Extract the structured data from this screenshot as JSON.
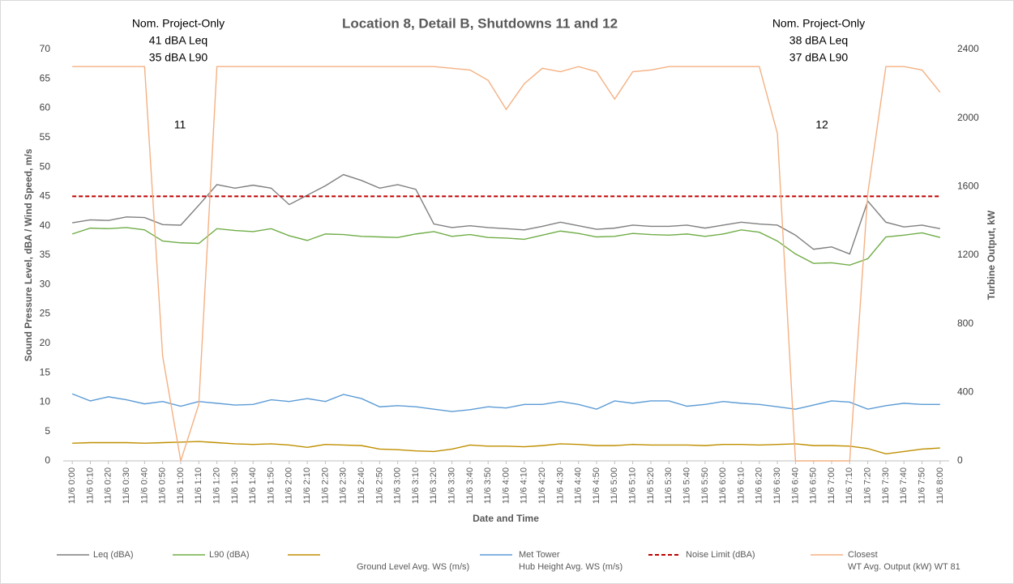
{
  "chart_data": {
    "type": "line",
    "title": "Location 8, Detail B, Shutdowns 11 and 12",
    "x_label": "Date and Time",
    "y_label": "Sound Pressure Level, dBA / Wind Speed, m/s",
    "y2_label": "Turbine Output, kW",
    "annotations": [
      "Nom. Project-Only",
      "41 dBA Leq",
      "35 dBA L90",
      "11",
      "Nom. Project-Only",
      "38 dBA Leq",
      "37 dBA L90",
      "12"
    ],
    "categories": [
      "11/6 0:00",
      "11/6 0:10",
      "11/6 0:20",
      "11/6 0:30",
      "11/6 0:40",
      "11/6 0:50",
      "11/6 1:00",
      "11/6 1:10",
      "11/6 1:20",
      "11/6 1:30",
      "11/6 1:40",
      "11/6 1:50",
      "11/6 2:00",
      "11/6 2:10",
      "11/6 2:20",
      "11/6 2:30",
      "11/6 2:40",
      "11/6 2:50",
      "11/6 3:00",
      "11/6 3:10",
      "11/6 3:20",
      "11/6 3:30",
      "11/6 3:40",
      "11/6 3:50",
      "11/6 4:00",
      "11/6 4:10",
      "11/6 4:20",
      "11/6 4:30",
      "11/6 4:40",
      "11/6 4:50",
      "11/6 5:00",
      "11/6 5:10",
      "11/6 5:20",
      "11/6 5:30",
      "11/6 5:40",
      "11/6 5:50",
      "11/6 6:00",
      "11/6 6:10",
      "11/6 6:20",
      "11/6 6:30",
      "11/6 6:40",
      "11/6 6:50",
      "11/6 7:00",
      "11/6 7:10",
      "11/6 7:20",
      "11/6 7:30",
      "11/6 7:40",
      "11/6 7:50",
      "11/6 8:00"
    ],
    "series": [
      {
        "name": "Leq (dBA)",
        "color": "#7f7f7f",
        "values": [
          40.5,
          41,
          40.9,
          41.5,
          41.4,
          40.2,
          40.1,
          43.5,
          47,
          46.4,
          46.9,
          46.4,
          43.6,
          45.2,
          46.8,
          48.7,
          47.7,
          46.4,
          47,
          46.2,
          40.3,
          39.7,
          40,
          39.7,
          39.5,
          39.3,
          39.9,
          40.6,
          40,
          39.4,
          39.6,
          40.1,
          39.9,
          39.9,
          40.1,
          39.6,
          40.1,
          40.6,
          40.3,
          40.1,
          38.4,
          36,
          36.4,
          35.2,
          44.2,
          40.6,
          39.8,
          40.1,
          39.5
        ]
      },
      {
        "name": "L90 (dBA)",
        "color": "#70ad47",
        "values": [
          38.6,
          39.6,
          39.5,
          39.7,
          39.3,
          37.4,
          37.1,
          37,
          39.5,
          39.2,
          39,
          39.5,
          38.3,
          37.5,
          38.6,
          38.5,
          38.2,
          38.1,
          38,
          38.6,
          39,
          38.2,
          38.5,
          38,
          37.9,
          37.7,
          38.4,
          39.1,
          38.7,
          38.1,
          38.2,
          38.7,
          38.5,
          38.4,
          38.6,
          38.2,
          38.6,
          39.3,
          38.9,
          37.4,
          35.2,
          33.6,
          33.7,
          33.3,
          34.4,
          38.1,
          38.4,
          38.8,
          38
        ]
      },
      {
        "name": "Ground Level Avg. WS (m/s)",
        "color": "#bf8f00",
        "values": [
          3.0,
          3.1,
          3.1,
          3.1,
          3.0,
          3.1,
          3.2,
          3.3,
          3.1,
          2.9,
          2.8,
          2.9,
          2.7,
          2.3,
          2.8,
          2.7,
          2.6,
          2.0,
          1.9,
          1.7,
          1.6,
          2.0,
          2.7,
          2.5,
          2.5,
          2.4,
          2.6,
          2.9,
          2.8,
          2.6,
          2.6,
          2.8,
          2.7,
          2.7,
          2.7,
          2.6,
          2.8,
          2.8,
          2.7,
          2.8,
          2.9,
          2.6,
          2.6,
          2.5,
          2.1,
          1.2,
          1.6,
          2.0,
          2.2
        ]
      },
      {
        "name": "Met Tower\nHub Height Avg. WS (m/s)",
        "color": "#5b9bd5",
        "values": [
          11.4,
          10.2,
          10.9,
          10.4,
          9.7,
          10.1,
          9.3,
          10.1,
          9.8,
          9.5,
          9.6,
          10.4,
          10.1,
          10.6,
          10.1,
          11.3,
          10.6,
          9.2,
          9.4,
          9.2,
          8.8,
          8.4,
          8.7,
          9.2,
          9.0,
          9.6,
          9.6,
          10.1,
          9.6,
          8.8,
          10.2,
          9.8,
          10.2,
          10.2,
          9.3,
          9.6,
          10.1,
          9.8,
          9.6,
          9.2,
          8.8,
          9.5,
          10.2,
          10.0,
          8.8,
          9.4,
          9.8,
          9.6,
          9.6
        ]
      },
      {
        "name": "Noise Limit (dBA)",
        "color": "#c00000",
        "dashed": true,
        "values": [
          45,
          45,
          45,
          45,
          45,
          45,
          45,
          45,
          45,
          45,
          45,
          45,
          45,
          45,
          45,
          45,
          45,
          45,
          45,
          45,
          45,
          45,
          45,
          45,
          45,
          45,
          45,
          45,
          45,
          45,
          45,
          45,
          45,
          45,
          45,
          45,
          45,
          45,
          45,
          45,
          45,
          45,
          45,
          45,
          45,
          45,
          45,
          45,
          45
        ]
      },
      {
        "name": "Closest\nWT Avg. Output (kW) WT 81",
        "color": "#f4b183",
        "axis": "y2",
        "values": [
          2300,
          2300,
          2300,
          2300,
          2300,
          610,
          0,
          330,
          2300,
          2300,
          2300,
          2300,
          2300,
          2300,
          2300,
          2300,
          2300,
          2300,
          2300,
          2300,
          2300,
          2290,
          2280,
          2220,
          2050,
          2200,
          2290,
          2270,
          2300,
          2270,
          2110,
          2270,
          2280,
          2300,
          2300,
          2300,
          2300,
          2300,
          2300,
          1910,
          0,
          0,
          0,
          0,
          1560,
          2300,
          2300,
          2280,
          2150
        ]
      }
    ],
    "ylim": [
      0,
      70
    ],
    "yticks": [
      0,
      5,
      10,
      15,
      20,
      25,
      30,
      35,
      40,
      45,
      50,
      55,
      60,
      65,
      70
    ],
    "y2lim": [
      0,
      2400
    ],
    "y2ticks": [
      0,
      400,
      800,
      1200,
      1600,
      2000,
      2400
    ],
    "grid": false
  }
}
